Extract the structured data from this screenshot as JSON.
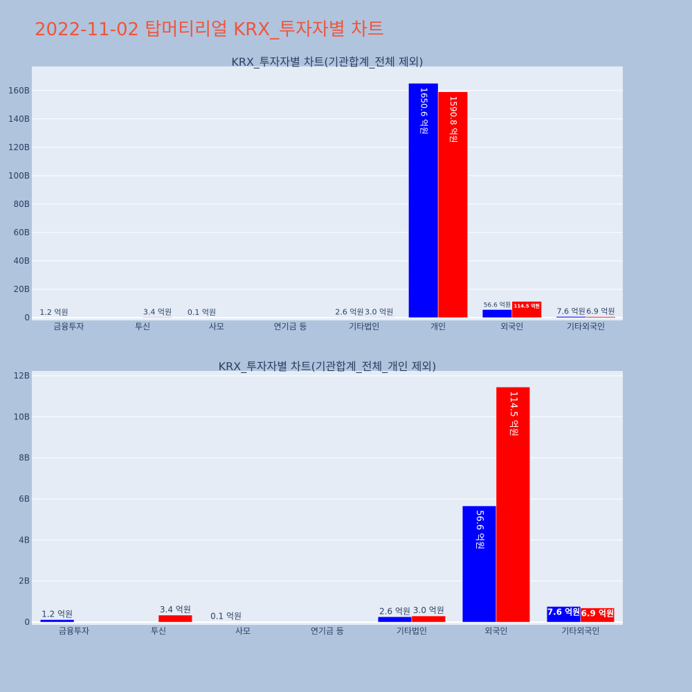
{
  "page_title": "2022-11-02 탑머티리얼 KRX_투자자별 차트",
  "colors": {
    "background": "#b0c4de",
    "plot_bg": "#e5ecf6",
    "title": "#ef553b",
    "text": "#2a3f5f",
    "series_1": "#0000ff",
    "series_2": "#ff0000"
  },
  "chart_data": [
    {
      "type": "bar",
      "title": "KRX_투자자별 차트(기관합계_전체 제외)",
      "categories": [
        "금융투자",
        "투신",
        "사모",
        "연기금 등",
        "기타법인",
        "개인",
        "외국인",
        "기타외국인"
      ],
      "series": [
        {
          "color": "#0000ff",
          "values": [
            120000000,
            0,
            10000000,
            0,
            260000000,
            165060000000,
            5660000000,
            760000000
          ],
          "labels": [
            "1.2 억원",
            "",
            "0.1 억원",
            "",
            "2.6 억원",
            "1650.6 억원",
            "56.6 억원",
            "7.6 억원"
          ]
        },
        {
          "color": "#ff0000",
          "values": [
            0,
            340000000,
            0,
            0,
            300000000,
            159080000000,
            11450000000,
            690000000
          ],
          "labels": [
            "",
            "3.4 억원",
            "",
            "",
            "3.0 억원",
            "1590.8 억원",
            "114.5 억원",
            "6.9 억원"
          ]
        }
      ],
      "ylim": [
        0,
        175000000000
      ],
      "yticks": [
        0,
        20000000000,
        40000000000,
        60000000000,
        80000000000,
        100000000000,
        120000000000,
        140000000000,
        160000000000
      ],
      "ytick_labels": [
        "0",
        "20B",
        "40B",
        "60B",
        "80B",
        "100B",
        "120B",
        "140B",
        "160B"
      ],
      "grid": true
    },
    {
      "type": "bar",
      "title": "KRX_투자자별 차트(기관합계_전체_개인 제외)",
      "categories": [
        "금융투자",
        "투신",
        "사모",
        "연기금 등",
        "기타법인",
        "외국인",
        "기타외국인"
      ],
      "series": [
        {
          "color": "#0000ff",
          "values": [
            120000000,
            0,
            10000000,
            0,
            260000000,
            5660000000,
            760000000
          ],
          "labels": [
            "1.2 억원",
            "",
            "0.1 억원",
            "",
            "2.6 억원",
            "56.6 억원",
            "7.6 억원"
          ]
        },
        {
          "color": "#ff0000",
          "values": [
            0,
            340000000,
            0,
            0,
            300000000,
            11450000000,
            690000000
          ],
          "labels": [
            "",
            "3.4 억원",
            "",
            "",
            "3.0 억원",
            "114.5 억원",
            "6.9 억원"
          ]
        }
      ],
      "ylim": [
        0,
        12100000000
      ],
      "yticks": [
        0,
        2000000000,
        4000000000,
        6000000000,
        8000000000,
        10000000000,
        12000000000
      ],
      "ytick_labels": [
        "0",
        "2B",
        "4B",
        "6B",
        "8B",
        "10B",
        "12B"
      ],
      "grid": true
    }
  ]
}
